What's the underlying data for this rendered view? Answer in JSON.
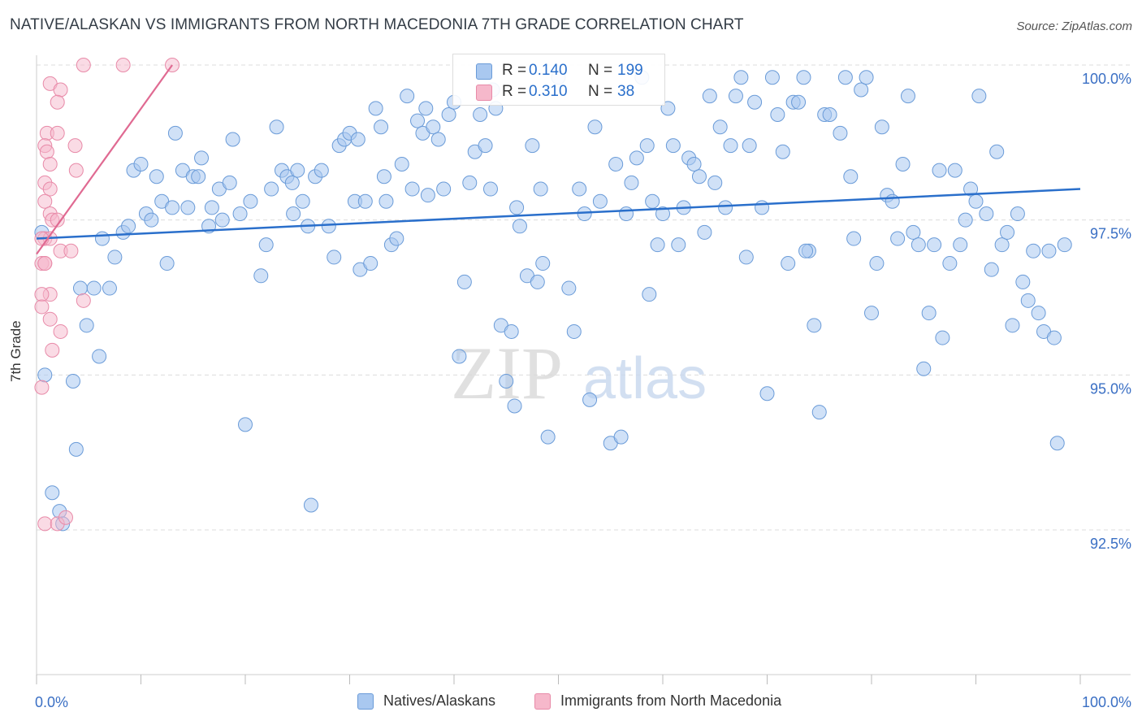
{
  "title": "NATIVE/ALASKAN VS IMMIGRANTS FROM NORTH MACEDONIA 7TH GRADE CORRELATION CHART",
  "source": "Source: ZipAtlas.com",
  "watermark": {
    "zip": "ZIP",
    "atlas": "atlas"
  },
  "colors": {
    "blue_fill": "#a9c8f0",
    "blue_stroke": "#6a9bd8",
    "blue_line": "#2a6fcb",
    "pink_fill": "#f6b8cb",
    "pink_stroke": "#e88aa8",
    "pink_line": "#e06a92",
    "tick_label": "#3a6fc4",
    "grid": "#dcdcdc"
  },
  "stat_legend": {
    "rows": [
      {
        "r_label": "R =",
        "r_value": "0.140",
        "n_label": "N =",
        "n_value": "199"
      },
      {
        "r_label": "R =",
        "r_value": "0.310",
        "n_label": "N =",
        "n_value": "38"
      }
    ]
  },
  "chart_data": {
    "type": "scatter",
    "title": "NATIVE/ALASKAN VS IMMIGRANTS FROM NORTH MACEDONIA 7TH GRADE CORRELATION CHART",
    "xlabel": "",
    "ylabel": "7th Grade",
    "xlim": [
      0,
      100
    ],
    "ylim": [
      90.1,
      100.3
    ],
    "y_ticks": [
      92.5,
      95.0,
      97.5,
      100.0
    ],
    "y_tick_labels": [
      "92.5%",
      "95.0%",
      "97.5%",
      "100.0%"
    ],
    "x_tick_labels": [
      "0.0%",
      "100.0%"
    ],
    "grid": true,
    "legend": [
      "Natives/Alaskans",
      "Immigrants from North Macedonia"
    ],
    "series": [
      {
        "name": "Natives/Alaskans",
        "color": "#a9c8f0",
        "trend": {
          "x": [
            0,
            100
          ],
          "y": [
            97.2,
            98.0
          ]
        },
        "points": [
          [
            0.5,
            97.3
          ],
          [
            0.8,
            95.0
          ],
          [
            3.5,
            94.9
          ],
          [
            1.5,
            93.1
          ],
          [
            2.2,
            92.8
          ],
          [
            2.5,
            92.6
          ],
          [
            3.8,
            93.8
          ],
          [
            4.2,
            96.4
          ],
          [
            4.8,
            95.8
          ],
          [
            5.5,
            96.4
          ],
          [
            6.0,
            95.3
          ],
          [
            6.3,
            97.2
          ],
          [
            7.0,
            96.4
          ],
          [
            7.5,
            96.9
          ],
          [
            8.3,
            97.3
          ],
          [
            8.8,
            97.4
          ],
          [
            9.3,
            98.3
          ],
          [
            10.0,
            98.4
          ],
          [
            10.5,
            97.6
          ],
          [
            11.0,
            97.5
          ],
          [
            11.5,
            98.2
          ],
          [
            12.0,
            97.8
          ],
          [
            12.5,
            96.8
          ],
          [
            13.0,
            97.7
          ],
          [
            13.3,
            98.9
          ],
          [
            14.0,
            98.3
          ],
          [
            14.5,
            97.7
          ],
          [
            15.0,
            98.2
          ],
          [
            15.5,
            98.2
          ],
          [
            15.8,
            98.5
          ],
          [
            16.5,
            97.4
          ],
          [
            16.8,
            97.7
          ],
          [
            17.5,
            98.0
          ],
          [
            17.8,
            97.5
          ],
          [
            18.5,
            98.1
          ],
          [
            18.8,
            98.8
          ],
          [
            19.5,
            97.6
          ],
          [
            20.0,
            94.2
          ],
          [
            20.5,
            97.8
          ],
          [
            21.5,
            96.6
          ],
          [
            22.0,
            97.1
          ],
          [
            22.5,
            98.0
          ],
          [
            23.0,
            99.0
          ],
          [
            23.5,
            98.3
          ],
          [
            24.0,
            98.2
          ],
          [
            24.5,
            98.1
          ],
          [
            25.0,
            98.3
          ],
          [
            25.5,
            97.8
          ],
          [
            26.0,
            97.4
          ],
          [
            26.3,
            92.9
          ],
          [
            26.7,
            98.2
          ],
          [
            27.3,
            98.3
          ],
          [
            28.0,
            97.4
          ],
          [
            28.5,
            96.9
          ],
          [
            29.0,
            98.7
          ],
          [
            29.5,
            98.8
          ],
          [
            30.0,
            98.9
          ],
          [
            30.5,
            97.8
          ],
          [
            31.0,
            96.7
          ],
          [
            31.5,
            97.8
          ],
          [
            32.0,
            96.8
          ],
          [
            32.5,
            99.3
          ],
          [
            33.0,
            99.0
          ],
          [
            33.3,
            98.2
          ],
          [
            33.5,
            97.8
          ],
          [
            34.0,
            97.1
          ],
          [
            34.5,
            97.2
          ],
          [
            35.0,
            98.4
          ],
          [
            35.5,
            99.5
          ],
          [
            36.0,
            98.0
          ],
          [
            36.5,
            99.1
          ],
          [
            37.0,
            98.9
          ],
          [
            37.5,
            97.9
          ],
          [
            38.0,
            99.0
          ],
          [
            38.5,
            98.8
          ],
          [
            39.0,
            98.0
          ],
          [
            39.5,
            99.2
          ],
          [
            40.0,
            99.4
          ],
          [
            40.5,
            95.3
          ],
          [
            41.0,
            96.5
          ],
          [
            41.5,
            98.1
          ],
          [
            42.0,
            98.6
          ],
          [
            42.5,
            99.2
          ],
          [
            43.0,
            98.7
          ],
          [
            43.5,
            98.0
          ],
          [
            44.0,
            99.3
          ],
          [
            44.5,
            95.8
          ],
          [
            45.0,
            94.9
          ],
          [
            45.5,
            95.7
          ],
          [
            45.8,
            94.5
          ],
          [
            46.0,
            97.7
          ],
          [
            46.3,
            97.4
          ],
          [
            47.0,
            96.6
          ],
          [
            47.5,
            98.7
          ],
          [
            48.0,
            96.5
          ],
          [
            48.5,
            96.8
          ],
          [
            49.0,
            94.0
          ],
          [
            50.0,
            99.8
          ],
          [
            51.0,
            96.4
          ],
          [
            51.5,
            95.7
          ],
          [
            52.0,
            98.0
          ],
          [
            52.5,
            97.6
          ],
          [
            53.0,
            94.6
          ],
          [
            53.5,
            99.0
          ],
          [
            54.0,
            97.8
          ],
          [
            55.0,
            93.9
          ],
          [
            55.5,
            98.4
          ],
          [
            56.0,
            94.0
          ],
          [
            56.5,
            97.6
          ],
          [
            57.0,
            98.1
          ],
          [
            57.5,
            98.5
          ],
          [
            58.0,
            99.8
          ],
          [
            58.5,
            98.7
          ],
          [
            59.0,
            97.8
          ],
          [
            59.5,
            97.1
          ],
          [
            60.0,
            97.6
          ],
          [
            60.5,
            99.3
          ],
          [
            61.0,
            98.7
          ],
          [
            61.5,
            97.1
          ],
          [
            62.0,
            97.7
          ],
          [
            62.5,
            98.5
          ],
          [
            63.0,
            98.4
          ],
          [
            63.5,
            98.2
          ],
          [
            64.0,
            97.3
          ],
          [
            64.5,
            99.5
          ],
          [
            65.0,
            98.1
          ],
          [
            65.5,
            99.0
          ],
          [
            66.0,
            97.7
          ],
          [
            66.5,
            98.7
          ],
          [
            67.0,
            99.5
          ],
          [
            67.5,
            99.8
          ],
          [
            68.0,
            96.9
          ],
          [
            68.3,
            98.7
          ],
          [
            68.8,
            99.4
          ],
          [
            69.5,
            97.7
          ],
          [
            70.0,
            94.7
          ],
          [
            70.5,
            99.8
          ],
          [
            71.0,
            99.2
          ],
          [
            71.5,
            98.6
          ],
          [
            72.0,
            96.8
          ],
          [
            72.5,
            99.4
          ],
          [
            73.0,
            99.4
          ],
          [
            73.5,
            99.8
          ],
          [
            74.0,
            97.0
          ],
          [
            74.5,
            95.8
          ],
          [
            75.0,
            94.4
          ],
          [
            75.5,
            99.2
          ],
          [
            76.0,
            99.2
          ],
          [
            77.0,
            98.9
          ],
          [
            77.5,
            99.8
          ],
          [
            78.0,
            98.2
          ],
          [
            78.3,
            97.2
          ],
          [
            79.0,
            99.6
          ],
          [
            79.5,
            99.8
          ],
          [
            80.0,
            96.0
          ],
          [
            80.5,
            96.8
          ],
          [
            81.0,
            99.0
          ],
          [
            81.5,
            97.9
          ],
          [
            82.0,
            97.8
          ],
          [
            82.5,
            97.2
          ],
          [
            83.0,
            98.4
          ],
          [
            83.5,
            99.5
          ],
          [
            84.0,
            97.3
          ],
          [
            84.5,
            97.1
          ],
          [
            85.0,
            95.1
          ],
          [
            85.5,
            96.0
          ],
          [
            86.0,
            97.1
          ],
          [
            86.5,
            98.3
          ],
          [
            86.8,
            95.6
          ],
          [
            87.5,
            96.8
          ],
          [
            88.0,
            98.3
          ],
          [
            88.5,
            97.1
          ],
          [
            89.0,
            97.5
          ],
          [
            89.5,
            98.0
          ],
          [
            90.0,
            97.8
          ],
          [
            90.3,
            99.5
          ],
          [
            91.0,
            97.6
          ],
          [
            91.5,
            96.7
          ],
          [
            92.0,
            98.6
          ],
          [
            92.5,
            97.1
          ],
          [
            93.0,
            97.3
          ],
          [
            93.5,
            95.8
          ],
          [
            94.0,
            97.6
          ],
          [
            94.5,
            96.5
          ],
          [
            95.0,
            96.2
          ],
          [
            95.5,
            97.0
          ],
          [
            96.0,
            96.0
          ],
          [
            96.5,
            95.7
          ],
          [
            97.0,
            97.0
          ],
          [
            97.5,
            95.6
          ],
          [
            97.8,
            93.9
          ],
          [
            98.5,
            97.1
          ],
          [
            30.8,
            98.8
          ],
          [
            48.3,
            98.0
          ],
          [
            58.7,
            96.3
          ],
          [
            73.7,
            97.0
          ],
          [
            43.7,
            99.6
          ],
          [
            24.6,
            97.6
          ],
          [
            37.3,
            99.3
          ]
        ]
      },
      {
        "name": "Immigrants from North Macedonia",
        "color": "#f6b8cb",
        "trend": {
          "x": [
            0,
            13.0
          ],
          "y": [
            96.95,
            100.0
          ]
        },
        "points": [
          [
            1.3,
            99.7
          ],
          [
            2.3,
            99.6
          ],
          [
            2.0,
            99.4
          ],
          [
            1.0,
            98.9
          ],
          [
            2.0,
            98.9
          ],
          [
            0.8,
            98.7
          ],
          [
            1.0,
            98.6
          ],
          [
            3.7,
            98.7
          ],
          [
            1.3,
            98.4
          ],
          [
            3.8,
            98.3
          ],
          [
            0.8,
            98.1
          ],
          [
            1.3,
            98.0
          ],
          [
            0.8,
            97.8
          ],
          [
            1.3,
            97.6
          ],
          [
            1.5,
            97.5
          ],
          [
            2.0,
            97.5
          ],
          [
            0.8,
            97.2
          ],
          [
            1.3,
            97.2
          ],
          [
            2.3,
            97.0
          ],
          [
            3.3,
            97.0
          ],
          [
            0.5,
            96.8
          ],
          [
            0.8,
            96.8
          ],
          [
            1.3,
            96.3
          ],
          [
            0.5,
            96.3
          ],
          [
            4.5,
            96.2
          ],
          [
            0.5,
            96.1
          ],
          [
            1.3,
            95.9
          ],
          [
            2.3,
            95.7
          ],
          [
            1.5,
            95.4
          ],
          [
            0.5,
            94.8
          ],
          [
            0.8,
            92.6
          ],
          [
            2.0,
            92.6
          ],
          [
            2.8,
            92.7
          ],
          [
            4.5,
            100.0
          ],
          [
            8.3,
            100.0
          ],
          [
            13.0,
            100.0
          ],
          [
            0.5,
            97.2
          ],
          [
            0.8,
            96.8
          ]
        ]
      }
    ]
  },
  "axes": {
    "x_left_label": "0.0%",
    "x_right_label": "100.0%",
    "y_labels": [
      "100.0%",
      "97.5%",
      "95.0%",
      "92.5%"
    ]
  },
  "bottom_legend": {
    "items": [
      {
        "label": "Natives/Alaskans"
      },
      {
        "label": "Immigrants from North Macedonia"
      }
    ]
  }
}
